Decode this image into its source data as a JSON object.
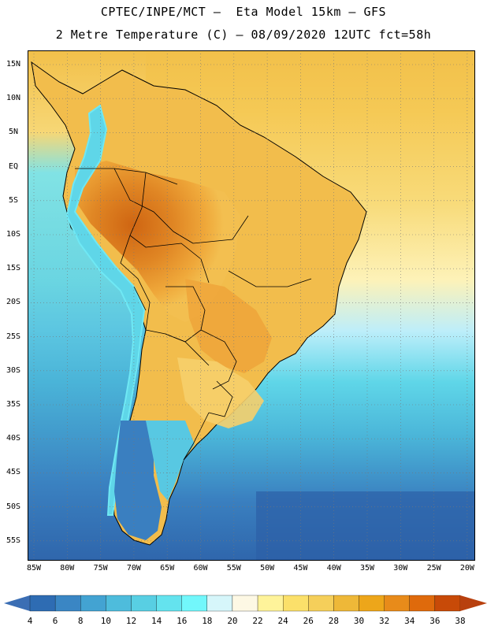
{
  "header": {
    "title_line1": "CPTEC/INPE/MCT –  Eta Model 15km – GFS",
    "title_line2": "2 Metre Temperature (C) – 08/09/2020 12UTC fct=58h"
  },
  "axes": {
    "lat_labels": [
      "15N",
      "10N",
      "5N",
      "EQ",
      "5S",
      "10S",
      "15S",
      "20S",
      "25S",
      "30S",
      "35S",
      "40S",
      "45S",
      "50S",
      "55S"
    ],
    "lon_labels": [
      "85W",
      "80W",
      "75W",
      "70W",
      "65W",
      "60W",
      "55W",
      "50W",
      "45W",
      "40W",
      "35W",
      "30W",
      "25W",
      "20W"
    ]
  },
  "colorbar": {
    "labels": [
      "4",
      "6",
      "8",
      "10",
      "12",
      "14",
      "16",
      "18",
      "20",
      "22",
      "24",
      "26",
      "28",
      "30",
      "32",
      "34",
      "36",
      "38"
    ],
    "low_color": "#3b6eb4",
    "high_color": "#b8400e",
    "colors": [
      "#2e6cb3",
      "#3a86c4",
      "#43a3d2",
      "#4ebcdc",
      "#58cfe3",
      "#64e3ee",
      "#72f7fb",
      "#d6f6fa",
      "#fdf8e4",
      "#fef39a",
      "#fbe06a",
      "#f5cf5a",
      "#eeb838",
      "#eda61a",
      "#e88b1a",
      "#df6a0c",
      "#c84a08"
    ]
  },
  "map": {
    "ocean_colors": {
      "deep": "#2e64aa",
      "mid": "#3f86c2",
      "light": "#4eb9da",
      "shelf": "#5fd6e8"
    },
    "land_colors": {
      "hot": "#d06a10",
      "warm": "#e89532",
      "mild": "#f2bd4c",
      "cool": "#f7d676",
      "andes": "#5fd6e8",
      "patagonia": "#3a7fc0"
    }
  }
}
